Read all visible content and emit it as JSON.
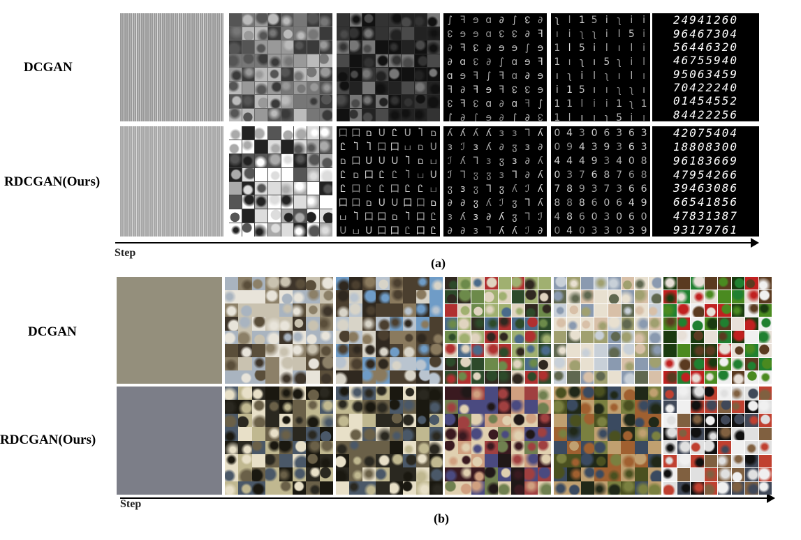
{
  "panel_a": {
    "caption": "(a)",
    "row_labels": [
      "DCGAN",
      "RDCGAN(Ours)"
    ],
    "step_label": "Step",
    "digit_rows": [
      "24941260",
      "96467304",
      "56446320",
      "46755940",
      "95063459",
      "70422240",
      "01454552",
      "84422256"
    ],
    "digit_rows_ours": [
      "42075404",
      "18808300",
      "96183669",
      "47954266",
      "39463086",
      "66541856",
      "47831387",
      "93179761"
    ]
  },
  "panel_b": {
    "caption": "(b)",
    "row_labels": [
      "DCGAN",
      "RDCGAN(Ours)"
    ],
    "step_label": "Step"
  }
}
